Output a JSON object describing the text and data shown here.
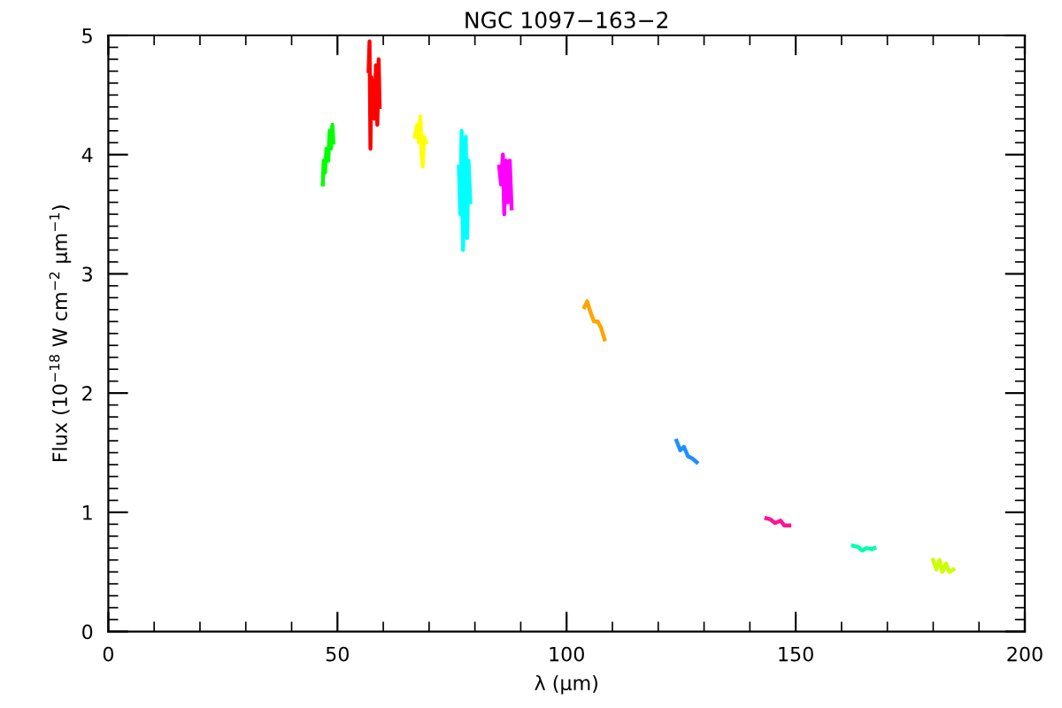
{
  "chart_data": {
    "type": "line",
    "title": "NGC 1097−163−2",
    "xlabel": "λ (μm)",
    "ylabel": "Flux (10$^{−18}$ W cm$^{−2}$ μm$^{−1}$)",
    "xlim": [
      0,
      200
    ],
    "xticks": [
      0,
      50,
      100,
      150,
      200
    ],
    "ylim": [
      0,
      5
    ],
    "yticks": [
      0,
      1,
      2,
      3,
      4,
      5
    ],
    "grid": false,
    "legend": false,
    "marker": "none",
    "line_style": "solid",
    "series": [
      {
        "color": "#00ff00",
        "x": [
          46.8,
          47.0,
          47.3,
          47.6,
          48.0,
          48.3,
          48.6,
          48.9,
          49.1
        ],
        "values": [
          3.75,
          3.95,
          3.85,
          4.05,
          3.95,
          4.2,
          4.05,
          4.25,
          4.1
        ]
      },
      {
        "color": "#ff0000",
        "x": [
          56.8,
          57.0,
          57.2,
          57.4,
          57.8,
          58.1,
          58.4,
          58.7,
          59.0,
          59.2
        ],
        "values": [
          4.7,
          4.95,
          4.05,
          4.65,
          4.5,
          4.3,
          4.75,
          4.25,
          4.8,
          4.4
        ]
      },
      {
        "color": "#ffff00",
        "x": [
          66.9,
          67.4,
          67.8,
          68.1,
          68.4,
          68.6,
          68.9,
          69.3
        ],
        "values": [
          4.15,
          4.25,
          4.1,
          4.32,
          4.0,
          3.9,
          4.15,
          4.1
        ]
      },
      {
        "color": "#00ffff",
        "x": [
          76.5,
          76.8,
          77.1,
          77.4,
          77.7,
          78.0,
          78.3,
          78.6,
          79.0
        ],
        "values": [
          3.9,
          3.5,
          4.2,
          3.2,
          3.7,
          4.15,
          3.3,
          3.95,
          3.6
        ]
      },
      {
        "color": "#ff00ff",
        "x": [
          85.3,
          85.7,
          86.1,
          86.4,
          86.8,
          87.2,
          87.6,
          88.0
        ],
        "values": [
          3.9,
          3.75,
          4.0,
          3.5,
          3.95,
          3.6,
          3.95,
          3.55
        ]
      },
      {
        "color": "#ffa500",
        "x": [
          103.9,
          104.5,
          105.2,
          106.0,
          106.8,
          107.5,
          108.3
        ],
        "values": [
          2.72,
          2.77,
          2.68,
          2.6,
          2.6,
          2.55,
          2.45
        ]
      },
      {
        "color": "#1e90ff",
        "x": [
          124.0,
          124.8,
          125.6,
          126.5,
          127.5,
          128.4
        ],
        "values": [
          1.6,
          1.52,
          1.55,
          1.47,
          1.45,
          1.42
        ]
      },
      {
        "color": "#ff1493",
        "x": [
          143.6,
          144.5,
          145.5,
          146.7,
          147.5,
          148.6
        ],
        "values": [
          0.95,
          0.94,
          0.91,
          0.93,
          0.89,
          0.89
        ]
      },
      {
        "color": "#00ffb0",
        "x": [
          162.5,
          163.6,
          164.5,
          165.5,
          166.6,
          167.2
        ],
        "values": [
          0.72,
          0.71,
          0.68,
          0.7,
          0.69,
          0.7
        ]
      },
      {
        "color": "#ccff00",
        "x": [
          180.0,
          180.7,
          181.4,
          182.0,
          182.8,
          183.5,
          184.4
        ],
        "values": [
          0.6,
          0.52,
          0.6,
          0.5,
          0.57,
          0.5,
          0.52
        ]
      }
    ]
  }
}
